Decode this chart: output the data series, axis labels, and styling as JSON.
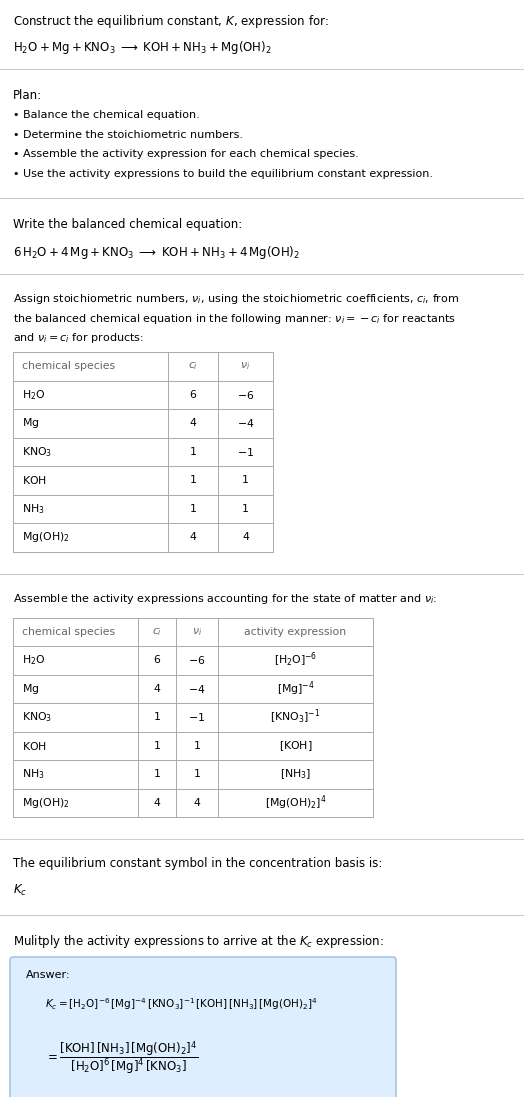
{
  "bg_color": "#ffffff",
  "text_color": "#000000",
  "gray_text": "#666666",
  "answer_bg": "#ddeeff",
  "answer_border": "#99bbdd",
  "title_line1": "Construct the equilibrium constant, $K$, expression for:",
  "title_line2": "$\\mathrm{H_2O + Mg + KNO_3 \\;\\longrightarrow\\; KOH + NH_3 + Mg(OH)_2}$",
  "plan_header": "Plan:",
  "plan_items": [
    "• Balance the chemical equation.",
    "• Determine the stoichiometric numbers.",
    "• Assemble the activity expression for each chemical species.",
    "• Use the activity expressions to build the equilibrium constant expression."
  ],
  "balanced_header": "Write the balanced chemical equation:",
  "balanced_eq": "$\\mathrm{6\\,H_2O + 4\\,Mg + KNO_3 \\;\\longrightarrow\\; KOH + NH_3 + 4\\,Mg(OH)_2}$",
  "stoich_text": "Assign stoichiometric numbers, $\\nu_i$, using the stoichiometric coefficients, $c_i$, from\nthe balanced chemical equation in the following manner: $\\nu_i = -c_i$ for reactants\nand $\\nu_i = c_i$ for products:",
  "table1_cols": [
    "chemical species",
    "$c_i$",
    "$\\nu_i$"
  ],
  "table1_rows": [
    [
      "$\\mathrm{H_2O}$",
      "6",
      "$-6$"
    ],
    [
      "$\\mathrm{Mg}$",
      "4",
      "$-4$"
    ],
    [
      "$\\mathrm{KNO_3}$",
      "1",
      "$-1$"
    ],
    [
      "$\\mathrm{KOH}$",
      "1",
      "1"
    ],
    [
      "$\\mathrm{NH_3}$",
      "1",
      "1"
    ],
    [
      "$\\mathrm{Mg(OH)_2}$",
      "4",
      "4"
    ]
  ],
  "activity_header": "Assemble the activity expressions accounting for the state of matter and $\\nu_i$:",
  "table2_cols": [
    "chemical species",
    "$c_i$",
    "$\\nu_i$",
    "activity expression"
  ],
  "table2_rows": [
    [
      "$\\mathrm{H_2O}$",
      "6",
      "$-6$",
      "$[\\mathrm{H_2O}]^{-6}$"
    ],
    [
      "$\\mathrm{Mg}$",
      "4",
      "$-4$",
      "$[\\mathrm{Mg}]^{-4}$"
    ],
    [
      "$\\mathrm{KNO_3}$",
      "1",
      "$-1$",
      "$[\\mathrm{KNO_3}]^{-1}$"
    ],
    [
      "$\\mathrm{KOH}$",
      "1",
      "1",
      "$[\\mathrm{KOH}]$"
    ],
    [
      "$\\mathrm{NH_3}$",
      "1",
      "1",
      "$[\\mathrm{NH_3}]$"
    ],
    [
      "$\\mathrm{Mg(OH)_2}$",
      "4",
      "4",
      "$[\\mathrm{Mg(OH)_2}]^{4}$"
    ]
  ],
  "kc_header": "The equilibrium constant symbol in the concentration basis is:",
  "kc_symbol": "$K_c$",
  "multiply_header": "Mulitply the activity expressions to arrive at the $K_c$ expression:",
  "answer_label": "Answer:",
  "answer_line1": "$K_c = [\\mathrm{H_2O}]^{-6}\\,[\\mathrm{Mg}]^{-4}\\,[\\mathrm{KNO_3}]^{-1}\\,[\\mathrm{KOH}]\\,[\\mathrm{NH_3}]\\,[\\mathrm{Mg(OH)_2}]^{4}$",
  "answer_line2": "$= \\dfrac{[\\mathrm{KOH}]\\,[\\mathrm{NH_3}]\\,[\\mathrm{Mg(OH)_2}]^{4}}{[\\mathrm{H_2O}]^{6}\\,[\\mathrm{Mg}]^{4}\\,[\\mathrm{KNO_3}]}$"
}
